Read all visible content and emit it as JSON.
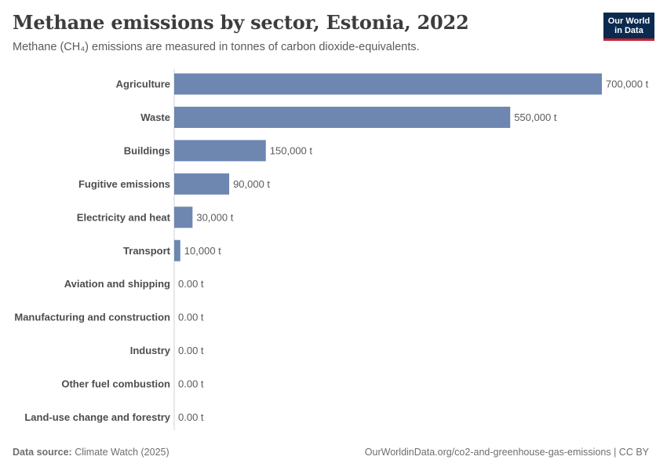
{
  "header": {
    "title": "Methane emissions by sector, Estonia, 2022",
    "subtitle": "Methane (CH₄) emissions are measured in tonnes of carbon dioxide-equivalents.",
    "logo_line1": "Our World",
    "logo_line2": "in Data"
  },
  "footer": {
    "source_label": "Data source:",
    "source_value": "Climate Watch (2025)",
    "url": "OurWorldinData.org/co2-and-greenhouse-gas-emissions | CC BY"
  },
  "colors": {
    "bar": "#6d87b1",
    "axis": "#d0d0d0",
    "label": "#4d4d4d",
    "value_label": "#5b5b5b",
    "logo_bg": "#0b2a4f",
    "logo_accent": "#c8202f"
  },
  "chart_data": {
    "type": "bar",
    "orientation": "horizontal",
    "title": "Methane emissions by sector, Estonia, 2022",
    "subtitle": "Methane (CH₄) emissions are measured in tonnes of carbon dioxide-equivalents.",
    "categories": [
      "Agriculture",
      "Waste",
      "Buildings",
      "Fugitive emissions",
      "Electricity and heat",
      "Transport",
      "Aviation and shipping",
      "Manufacturing and construction",
      "Industry",
      "Other fuel combustion",
      "Land-use change and forestry"
    ],
    "values": [
      700000,
      550000,
      150000,
      90000,
      30000,
      10000,
      0,
      0,
      0,
      0,
      0
    ],
    "value_labels": [
      "700,000 t",
      "550,000 t",
      "150,000 t",
      "90,000 t",
      "30,000 t",
      "10,000 t",
      "0.00 t",
      "0.00 t",
      "0.00 t",
      "0.00 t",
      "0.00 t"
    ],
    "xlim": [
      0,
      700000
    ],
    "unit": "t"
  }
}
